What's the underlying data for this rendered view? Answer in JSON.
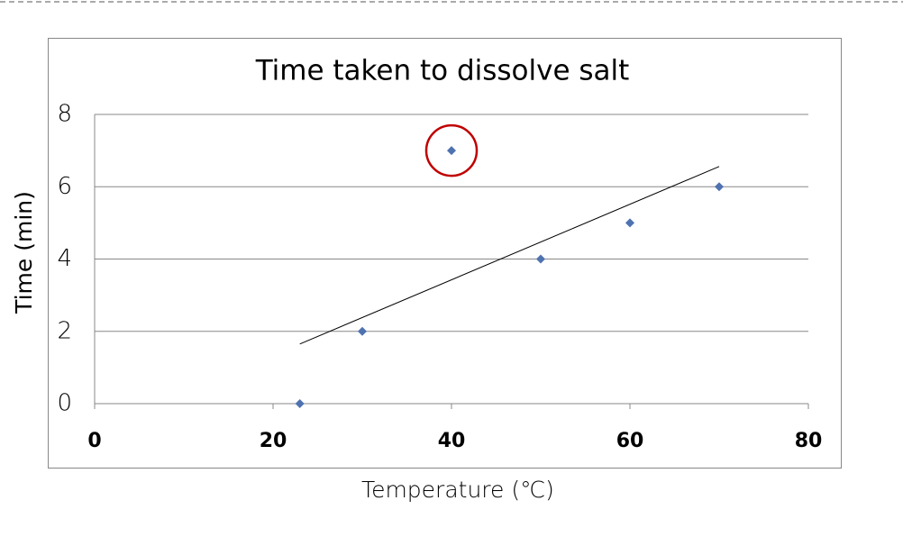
{
  "chart_data": {
    "type": "scatter",
    "title": "Time taken to dissolve salt",
    "x_label": "Temperature (℃)",
    "y_label": "Time (min)",
    "series": [
      {
        "name": "Time",
        "color": "#4f72b0",
        "x": [
          23,
          30,
          40,
          50,
          60,
          70
        ],
        "values": [
          0,
          2,
          7,
          4,
          5,
          6
        ]
      }
    ],
    "trendline": {
      "x": [
        23,
        70
      ],
      "values": [
        1.65,
        6.56
      ],
      "color": "#000000"
    },
    "xlim": [
      0,
      80
    ],
    "xticks": [
      0,
      20,
      40,
      60,
      80
    ],
    "ylim": [
      0,
      8
    ],
    "yticks": [
      0,
      2,
      4,
      6,
      8
    ],
    "grid": true
  }
}
